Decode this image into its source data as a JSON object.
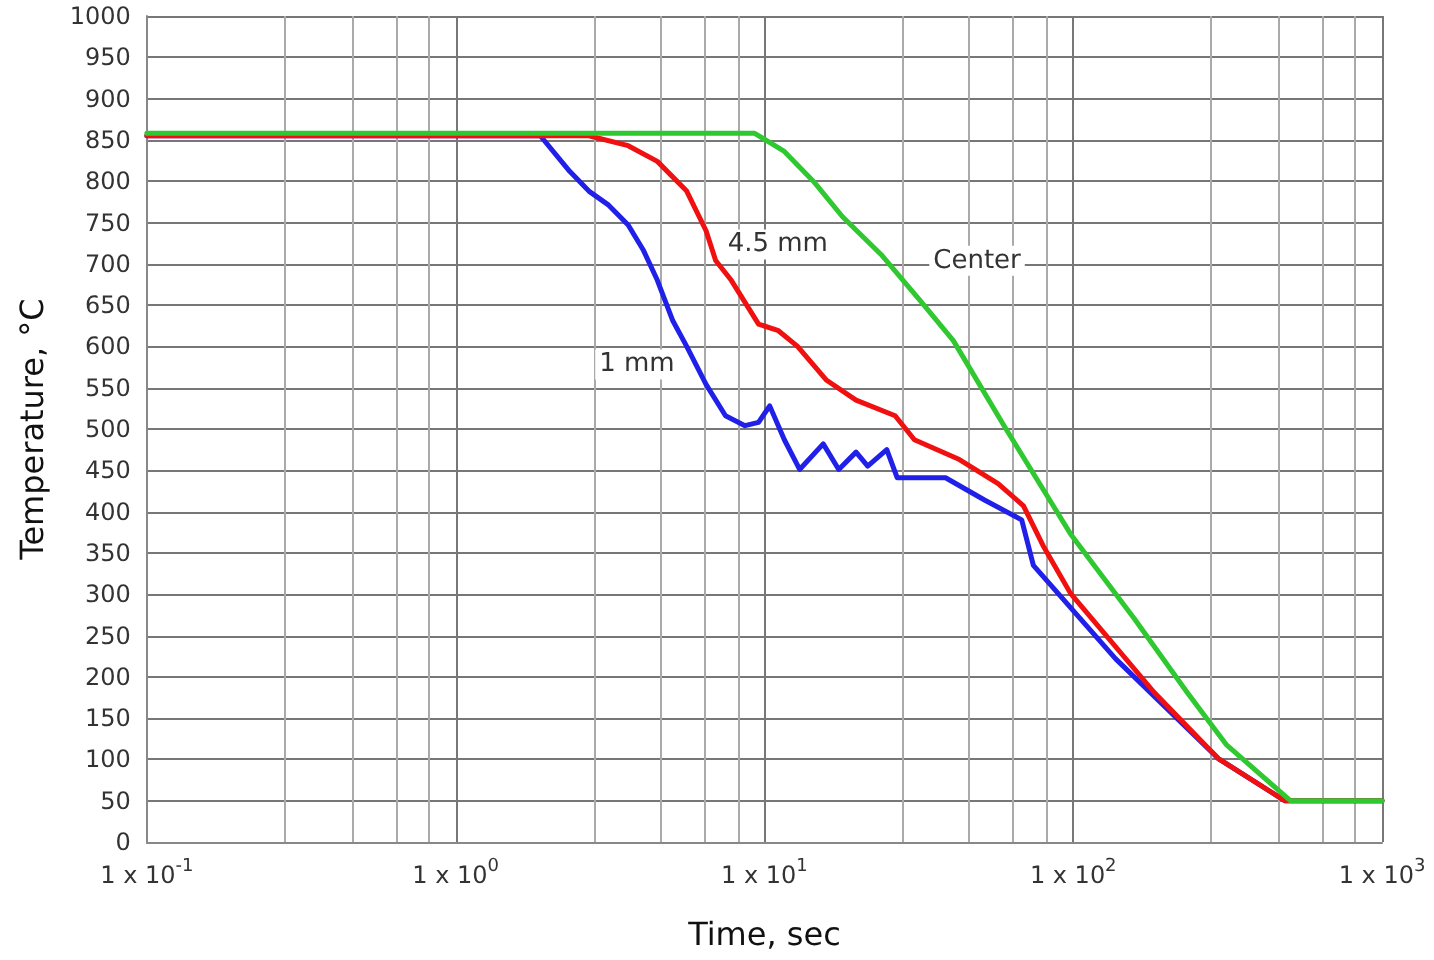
{
  "chart_data": {
    "type": "line",
    "xlabel": "Time, sec",
    "ylabel": "Temperature, °C",
    "log": "x",
    "grid": true,
    "marker": "none",
    "line_style": "solid",
    "xlim": [
      0.1,
      1000
    ],
    "ylim": [
      0,
      1000
    ],
    "xticks": [
      {
        "value": 0.1,
        "label": "1 x 10$^{-1}$"
      },
      {
        "value": 1,
        "label": "1 x 10$^{0}$"
      },
      {
        "value": 10,
        "label": "1 x 10$^{1}$"
      },
      {
        "value": 100,
        "label": "1 x 10$^{2}$"
      },
      {
        "value": 1000,
        "label": "1 x 10$^{3}$"
      }
    ],
    "yticks": [
      0,
      50,
      100,
      150,
      200,
      250,
      300,
      350,
      400,
      450,
      500,
      550,
      600,
      650,
      700,
      750,
      800,
      850,
      900,
      950,
      1000
    ],
    "series": [
      {
        "color": "#2020e8",
        "x": [
          0.1,
          1.88,
          2.34,
          2.7,
          3.13,
          3.62,
          4.06,
          4.5,
          5.05,
          5.6,
          6.47,
          7.48,
          8.65,
          9.57,
          10.4,
          11.6,
          13,
          15.5,
          17.4,
          19.8,
          21.6,
          24.9,
          26.9,
          38.6,
          51.6,
          68.1,
          74.3,
          84.6,
          137,
          295,
          484,
          1000
        ],
        "values": [
          855,
          855,
          812,
          788,
          771,
          747,
          716,
          680,
          631,
          600,
          554,
          516,
          504,
          508,
          528,
          487,
          451,
          482,
          451,
          472,
          455,
          475,
          441,
          441,
          414,
          390,
          335,
          311,
          222,
          101,
          50,
          50
        ]
      },
      {
        "color": "#f01010",
        "x": [
          0.1,
          2.7,
          3.62,
          4.5,
          5.6,
          6.47,
          6.95,
          7.81,
          9.57,
          11.1,
          12.8,
          15.9,
          19.8,
          26.5,
          30.6,
          42.8,
          57.1,
          69,
          79.8,
          98,
          183,
          295,
          484,
          1000
        ],
        "values": [
          855,
          855,
          843,
          824,
          788,
          740,
          704,
          680,
          627,
          619,
          600,
          559,
          535,
          516,
          487,
          463,
          434,
          407,
          359,
          301,
          181,
          101,
          50,
          50
        ]
      },
      {
        "color": "#30c830",
        "x": [
          0.1,
          7.48,
          9.3,
          11.6,
          14.4,
          17.9,
          23.9,
          32,
          40.9,
          59.7,
          98,
          158,
          234,
          313,
          505,
          1000
        ],
        "values": [
          858,
          858,
          858,
          836,
          800,
          757,
          711,
          655,
          607,
          504,
          373,
          270,
          181,
          118,
          50,
          50
        ]
      }
    ],
    "annotations": [
      {
        "text": "4.5 mm",
        "x": 6.95,
        "y": 704
      },
      {
        "text": "Center",
        "x": 23.9,
        "y": 711
      },
      {
        "text": "1 mm",
        "x": 5.6,
        "y": 600
      }
    ]
  }
}
